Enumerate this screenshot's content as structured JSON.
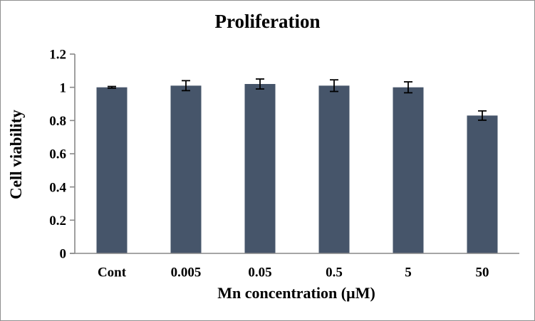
{
  "chart_data": {
    "type": "bar",
    "title": "Proliferation",
    "xlabel": "Mn concentration (µM)",
    "ylabel": "Cell viability",
    "categories": [
      "Cont",
      "0.005",
      "0.05",
      "0.5",
      "5",
      "50"
    ],
    "values": [
      1.0,
      1.01,
      1.02,
      1.01,
      1.0,
      0.83
    ],
    "errors": [
      0.005,
      0.03,
      0.03,
      0.035,
      0.033,
      0.028
    ],
    "ylim": [
      0,
      1.2
    ],
    "ytick_values": [
      0,
      0.2,
      0.4,
      0.6,
      0.8,
      1,
      1.2
    ],
    "ytick_labels": [
      "0",
      "0.2",
      "0.4",
      "0.6",
      "0.8",
      "1",
      "1.2"
    ],
    "grid": false,
    "legend_position": "none",
    "bar_color": "#46556A",
    "axis_color": "#898989",
    "error_bar_color": "#000000"
  }
}
